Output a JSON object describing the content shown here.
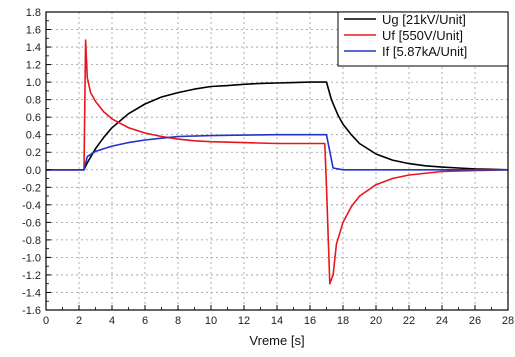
{
  "chart_data": {
    "type": "line",
    "title": "",
    "xlabel": "Vreme [s]",
    "ylabel": "",
    "xlim": [
      0,
      28
    ],
    "ylim": [
      -1.6,
      1.8
    ],
    "xticks": [
      "0",
      "2",
      "4",
      "6",
      "8",
      "10",
      "12",
      "14",
      "16",
      "18",
      "20",
      "22",
      "24",
      "26",
      "28"
    ],
    "yticks": [
      "1.8",
      "1.6",
      "1.4",
      "1.2",
      "1.0",
      "0.8",
      "0.6",
      "0.4",
      "0.2",
      "0.0",
      "-0.2",
      "-0.4",
      "-0.6",
      "-0.8",
      "-1.0",
      "-1.2",
      "-1.4",
      "-1.6"
    ],
    "grid": true,
    "legend_position": "top-right",
    "series": [
      {
        "name": "Ug [21kV/Unit]",
        "color": "#000000",
        "x": [
          0,
          2.3,
          2.5,
          3,
          3.5,
          4,
          5,
          6,
          7,
          8,
          9,
          10,
          11,
          12,
          13,
          14,
          15,
          16,
          17,
          17.3,
          17.7,
          18,
          18.5,
          19,
          20,
          21,
          22,
          23,
          24,
          25,
          26,
          27,
          28
        ],
        "y": [
          0,
          0,
          0.08,
          0.24,
          0.37,
          0.48,
          0.64,
          0.75,
          0.83,
          0.88,
          0.92,
          0.95,
          0.96,
          0.975,
          0.985,
          0.99,
          0.995,
          1.0,
          1.0,
          0.8,
          0.62,
          0.52,
          0.4,
          0.3,
          0.18,
          0.11,
          0.07,
          0.045,
          0.03,
          0.02,
          0.01,
          0.005,
          0.0
        ]
      },
      {
        "name": "Uf [550V/Unit]",
        "color": "#e8171d",
        "x": [
          0,
          2.3,
          2.4,
          2.5,
          2.7,
          3,
          3.5,
          4,
          5,
          6,
          7,
          8,
          9,
          10,
          12,
          14,
          16,
          16.9,
          17.0,
          17.2,
          17.4,
          17.6,
          18,
          18.5,
          19,
          20,
          21,
          22,
          24,
          26,
          28
        ],
        "y": [
          0,
          0,
          1.48,
          1.05,
          0.88,
          0.78,
          0.66,
          0.58,
          0.48,
          0.42,
          0.38,
          0.35,
          0.33,
          0.32,
          0.31,
          0.3,
          0.3,
          0.3,
          -0.2,
          -1.3,
          -1.2,
          -0.85,
          -0.6,
          -0.42,
          -0.3,
          -0.17,
          -0.1,
          -0.06,
          -0.02,
          -0.01,
          0.0
        ]
      },
      {
        "name": "If [5.87kA/Unit]",
        "color": "#2233cc",
        "x": [
          0,
          2.3,
          2.5,
          3,
          4,
          5,
          6,
          7,
          8,
          10,
          12,
          14,
          16,
          17,
          17.1,
          17.4,
          18,
          28
        ],
        "y": [
          0,
          0,
          0.15,
          0.21,
          0.27,
          0.31,
          0.34,
          0.36,
          0.38,
          0.39,
          0.395,
          0.4,
          0.4,
          0.4,
          0.3,
          0.02,
          0.0,
          0.0
        ]
      }
    ]
  }
}
